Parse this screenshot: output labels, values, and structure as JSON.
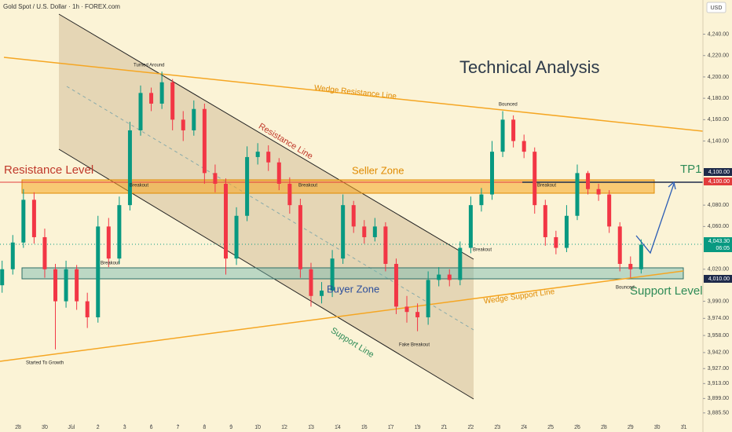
{
  "header": {
    "title": "Gold Spot / U.S. Dollar · 1h · FOREX.com",
    "currency": "USD"
  },
  "chart_data": {
    "type": "candlestick",
    "x": [
      -0.6,
      -0.2,
      0.2,
      0.6,
      1.0,
      1.4,
      1.8,
      2.2,
      2.6,
      3.0,
      3.4,
      3.8,
      4.2,
      4.6,
      5.0,
      5.4,
      5.8,
      6.2,
      6.6,
      7.0,
      7.4,
      7.8,
      8.2,
      8.6,
      9.0,
      9.4,
      9.8,
      10.2,
      10.6,
      11.0,
      11.4,
      11.8,
      12.2,
      12.6,
      13.0,
      13.4,
      13.8,
      14.2,
      14.6,
      15.0,
      15.4,
      15.8,
      16.2,
      16.6,
      17.0,
      17.4,
      17.8,
      18.2,
      18.6,
      19.0,
      19.4,
      19.8,
      20.2,
      20.6,
      21.0,
      21.4,
      21.8,
      22.2,
      22.6,
      23.0,
      23.4
    ],
    "open": [
      4005,
      4020,
      4045,
      4085,
      4050,
      4020,
      3990,
      4020,
      3990,
      3975,
      4060,
      4030,
      4080,
      4150,
      4185,
      4175,
      4195,
      4160,
      4150,
      4170,
      4110,
      4100,
      4030,
      4070,
      4125,
      4130,
      4120,
      4100,
      4080,
      4020,
      3995,
      4000,
      4030,
      4080,
      4060,
      4050,
      4060,
      4025,
      3985,
      3980,
      3975,
      4010,
      4015,
      4010,
      4040,
      4080,
      4090,
      4130,
      4160,
      4140,
      4130,
      4080,
      4050,
      4040,
      4070,
      4110,
      4095,
      4090,
      4060,
      4025,
      4020
    ],
    "high": [
      4028,
      4052,
      4095,
      4092,
      4058,
      4025,
      4028,
      4024,
      3998,
      4070,
      4068,
      4088,
      4158,
      4192,
      4190,
      4205,
      4198,
      4168,
      4178,
      4175,
      4118,
      4105,
      4078,
      4135,
      4138,
      4136,
      4124,
      4106,
      4086,
      4026,
      4008,
      4038,
      4090,
      4084,
      4066,
      4068,
      4064,
      4030,
      3995,
      3988,
      4018,
      4022,
      4020,
      4046,
      4088,
      4096,
      4140,
      4168,
      4164,
      4146,
      4134,
      4085,
      4056,
      4080,
      4118,
      4112,
      4100,
      4094,
      4064,
      4032,
      4048
    ],
    "low": [
      3998,
      4015,
      4040,
      4044,
      4012,
      3945,
      3984,
      3982,
      3965,
      3970,
      4022,
      4025,
      4075,
      4145,
      4168,
      4170,
      4150,
      4140,
      4145,
      4100,
      4092,
      4015,
      4024,
      4065,
      4118,
      4112,
      4094,
      4072,
      4012,
      3985,
      3988,
      3994,
      4025,
      4054,
      4044,
      4046,
      4018,
      3978,
      3970,
      3962,
      3968,
      4004,
      4004,
      4005,
      4035,
      4074,
      4085,
      4125,
      4134,
      4124,
      4072,
      4042,
      4034,
      4036,
      4066,
      4090,
      4084,
      4054,
      4018,
      4012,
      4016
    ],
    "close": [
      4020,
      4045,
      4085,
      4050,
      4020,
      3990,
      4020,
      3990,
      3975,
      4060,
      4030,
      4080,
      4150,
      4185,
      4175,
      4195,
      4160,
      4150,
      4170,
      4110,
      4100,
      4030,
      4070,
      4125,
      4130,
      4120,
      4100,
      4080,
      4020,
      3995,
      4000,
      4030,
      4080,
      4060,
      4050,
      4060,
      4025,
      3985,
      3980,
      3975,
      4010,
      4015,
      4010,
      4040,
      4080,
      4090,
      4130,
      4160,
      4140,
      4130,
      4080,
      4050,
      4040,
      4070,
      4110,
      4095,
      4090,
      4060,
      4025,
      4020,
      4043
    ],
    "up_color": "#089981",
    "down_color": "#f23645",
    "xlim": [
      -0.68,
      25.72
    ],
    "ylim": [
      3875,
      4272
    ],
    "xticks": [
      {
        "value": 0,
        "label": "28"
      },
      {
        "value": 1,
        "label": "30"
      },
      {
        "value": 2,
        "label": "Jul"
      },
      {
        "value": 3,
        "label": "2"
      },
      {
        "value": 4,
        "label": "3"
      },
      {
        "value": 5,
        "label": "6"
      },
      {
        "value": 6,
        "label": "7"
      },
      {
        "value": 7,
        "label": "8"
      },
      {
        "value": 8,
        "label": "9"
      },
      {
        "value": 9,
        "label": "10"
      },
      {
        "value": 10,
        "label": "12"
      },
      {
        "value": 11,
        "label": "13"
      },
      {
        "value": 12,
        "label": "14"
      },
      {
        "value": 13,
        "label": "16"
      },
      {
        "value": 14,
        "label": "17"
      },
      {
        "value": 15,
        "label": "19"
      },
      {
        "value": 16,
        "label": "21"
      },
      {
        "value": 17,
        "label": "22"
      },
      {
        "value": 18,
        "label": "23"
      },
      {
        "value": 19,
        "label": "24"
      },
      {
        "value": 20,
        "label": "25"
      },
      {
        "value": 21,
        "label": "26"
      },
      {
        "value": 22,
        "label": "28"
      },
      {
        "value": 23,
        "label": "29"
      },
      {
        "value": 24,
        "label": "30"
      },
      {
        "value": 25,
        "label": "31"
      }
    ],
    "yticks": [
      {
        "value": 4240,
        "label": "4,240.00"
      },
      {
        "value": 4220,
        "label": "4,220.00"
      },
      {
        "value": 4200,
        "label": "4,200.00"
      },
      {
        "value": 4180,
        "label": "4,180.00"
      },
      {
        "value": 4160,
        "label": "4,160.00"
      },
      {
        "value": 4140,
        "label": "4,140.00"
      },
      {
        "value": 4080,
        "label": "4,080.00"
      },
      {
        "value": 4060,
        "label": "4,060.00"
      },
      {
        "value": 4020,
        "label": "4,020.00"
      },
      {
        "value": 3990,
        "label": "3,990.00"
      },
      {
        "value": 3974,
        "label": "3,974.00"
      },
      {
        "value": 3958,
        "label": "3,958.00"
      },
      {
        "value": 3942,
        "label": "3,942.00"
      },
      {
        "value": 3927,
        "label": "3,927.00"
      },
      {
        "value": 3913,
        "label": "3,913.00"
      },
      {
        "value": 3899,
        "label": "3,899.00"
      },
      {
        "value": 3885.5,
        "label": "3,885.50"
      }
    ]
  },
  "annotations": [
    "Technical Analysis",
    "Wedge Resistance Line",
    "Resistance Line",
    "Seller Zone",
    "Resistance Level",
    "TP1",
    "Buyer Zone",
    "Support Line",
    "Wedge Support Line",
    "Support Level",
    "Turned Around",
    "Bounced",
    "Bounced",
    "Breakout",
    "Breakout",
    "Breakout",
    "Breakout",
    "Breakout",
    "Started To Growth",
    "Fake Breakout"
  ],
  "price_labels": [
    "4,100.00",
    "4,100.00",
    "4,043.30",
    "06:05",
    "4,010.00"
  ]
}
